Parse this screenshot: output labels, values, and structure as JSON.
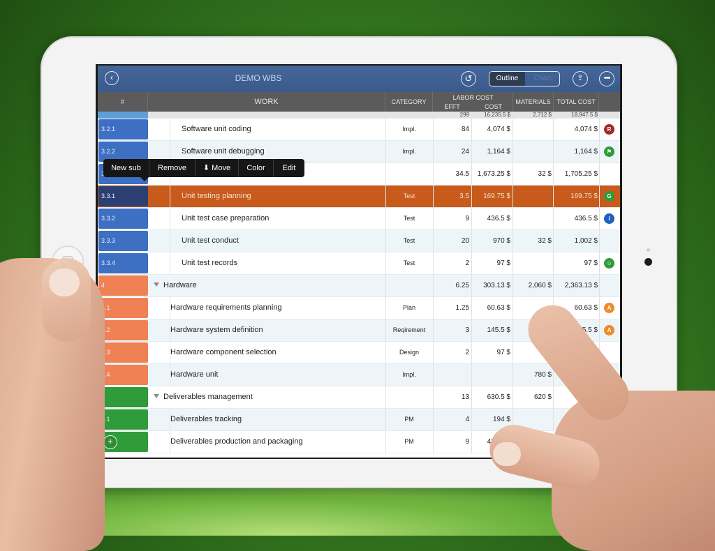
{
  "toolbar": {
    "back_icon": "chevron-left-icon",
    "title": "DEMO WBS",
    "undo_icon": "undo-icon",
    "view_tabs": [
      {
        "label": "Outline",
        "selected": true
      },
      {
        "label": "Chart",
        "selected": false
      }
    ],
    "share_icon": "share-icon",
    "more_icon": "more-icon"
  },
  "popup_menu": [
    "New sub",
    "Remove",
    "⬇ Move",
    "Color",
    "Edit"
  ],
  "table": {
    "columns": {
      "num": "#",
      "work": "WORK",
      "category": "CATEGORY",
      "labor_cost": "LABOR COST",
      "effort": "EFFT",
      "cost": "COST",
      "materials": "MATERIALS",
      "total_cost": "TOTAL COST"
    },
    "totals": {
      "effort": "299",
      "cost": "16,235.5 $",
      "materials": "2,712 $",
      "total": "18,947.5 $"
    },
    "rows": [
      {
        "num": "3.2.1",
        "work": "Software unit coding",
        "category": "Impl.",
        "effort": "84",
        "cost": "4,074 $",
        "materials": "",
        "total": "4,074 $",
        "badge": "R",
        "badge_color": "#a22a2a",
        "num_color": "blue",
        "indent": 2
      },
      {
        "num": "3.2.2",
        "work": "Software unit debugging",
        "category": "Impl.",
        "effort": "24",
        "cost": "1,164 $",
        "materials": "",
        "total": "1,164 $",
        "badge": "⚑",
        "badge_color": "#2f9b3a",
        "num_color": "blue",
        "indent": 2
      },
      {
        "num": "3",
        "work": "",
        "category": "",
        "effort": "34.5",
        "cost": "1,673.25 $",
        "materials": "32 $",
        "total": "1,705.25 $",
        "badge": "",
        "badge_color": "",
        "num_color": "blue",
        "indent": 1
      },
      {
        "num": "3.3.1",
        "work": "Unit testing planning",
        "category": "Test",
        "effort": "3.5",
        "cost": "169.75 $",
        "materials": "",
        "total": "169.75 $",
        "badge": "G",
        "badge_color": "#2f9b3a",
        "num_color": "navy",
        "indent": 2,
        "selected": true
      },
      {
        "num": "3.3.2",
        "work": "Unit test case preparation",
        "category": "Test",
        "effort": "9",
        "cost": "436.5 $",
        "materials": "",
        "total": "436.5 $",
        "badge": "i",
        "badge_color": "#1f5fbf",
        "num_color": "blue",
        "indent": 2
      },
      {
        "num": "3.3.3",
        "work": "Unit test conduct",
        "category": "Test",
        "effort": "20",
        "cost": "970 $",
        "materials": "32 $",
        "total": "1,002 $",
        "badge": "",
        "badge_color": "",
        "num_color": "blue",
        "indent": 2
      },
      {
        "num": "3.3.4",
        "work": "Unit test records",
        "category": "Test",
        "effort": "2",
        "cost": "97 $",
        "materials": "",
        "total": "97 $",
        "badge": "☺",
        "badge_color": "#2f9b3a",
        "num_color": "blue",
        "indent": 2
      },
      {
        "num": "4",
        "work": "Hardware",
        "category": "",
        "effort": "6.25",
        "cost": "303.13 $",
        "materials": "2,060 $",
        "total": "2,363.13 $",
        "badge": "",
        "badge_color": "",
        "num_color": "orange",
        "indent": 0,
        "group": true
      },
      {
        "num": "4.1",
        "work": "Hardware requirements planning",
        "category": "Plan",
        "effort": "1.25",
        "cost": "60.63 $",
        "materials": "",
        "total": "60.63 $",
        "badge": "A",
        "badge_color": "#ef8a2a",
        "num_color": "orange",
        "indent": 1
      },
      {
        "num": "4.2",
        "work": "Hardware system definition",
        "category": "Reqirement",
        "effort": "3",
        "cost": "145.5 $",
        "materials": "",
        "total": "145.5 $",
        "badge": "A",
        "badge_color": "#ef8a2a",
        "num_color": "orange",
        "indent": 1
      },
      {
        "num": "4.3",
        "work": "Hardware component selection",
        "category": "Design",
        "effort": "2",
        "cost": "97 $",
        "materials": "",
        "total": "",
        "badge": "",
        "badge_color": "",
        "num_color": "orange",
        "indent": 1
      },
      {
        "num": "4.4",
        "work": "Hardware unit",
        "category": "Impl.",
        "effort": "",
        "cost": "",
        "materials": "780 $",
        "total": "",
        "badge": "R",
        "badge_color": "#a22a2a",
        "num_color": "orange",
        "indent": 1
      },
      {
        "num": "5",
        "work": "Deliverables management",
        "category": "",
        "effort": "13",
        "cost": "630.5 $",
        "materials": "620 $",
        "total": "",
        "badge": "",
        "badge_color": "",
        "num_color": "green",
        "indent": 0,
        "group": true
      },
      {
        "num": "5.1",
        "work": "Deliverables tracking",
        "category": "PM",
        "effort": "4",
        "cost": "194 $",
        "materials": "",
        "total": "",
        "badge": "",
        "badge_color": "",
        "num_color": "green",
        "indent": 1
      },
      {
        "num": "",
        "work": "Deliverables production and packaging",
        "category": "PM",
        "effort": "9",
        "cost": "436.5 $",
        "materials": "620 $",
        "total": "",
        "badge": "",
        "badge_color": "",
        "num_color": "green",
        "indent": 1
      }
    ]
  },
  "add_button_icon": "plus-icon"
}
